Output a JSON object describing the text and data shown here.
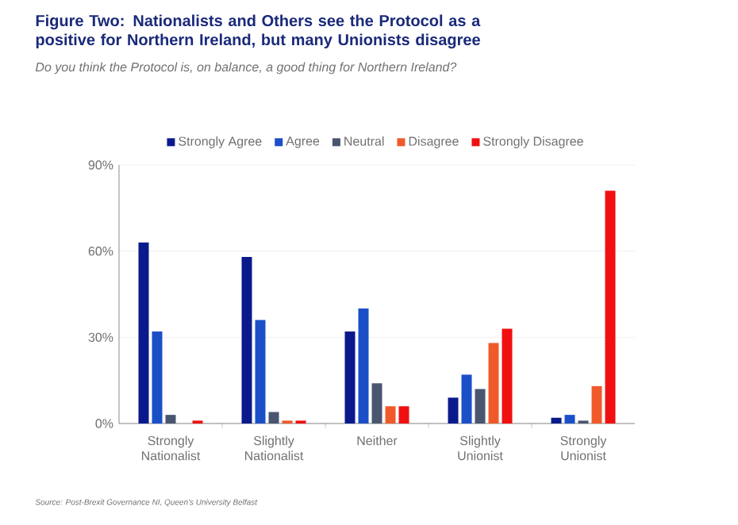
{
  "chart_data": {
    "type": "bar",
    "title": "Figure Two: Nationalists and Others see the Protocol as a positive for Northern Ireland, but many Unionists disagree",
    "subtitle": "Do you think the Protocol is, on balance, a good thing for Northern Ireland?",
    "categories": [
      "Strongly Nationalist",
      "Slightly Nationalist",
      "Neither",
      "Slightly Unionist",
      "Strongly Unionist"
    ],
    "series": [
      {
        "name": "Strongly Agree",
        "color": "#0a1a8c",
        "values": [
          63,
          58,
          32,
          9,
          2
        ]
      },
      {
        "name": "Agree",
        "color": "#1a4fc8",
        "values": [
          32,
          36,
          40,
          17,
          3
        ]
      },
      {
        "name": "Neutral",
        "color": "#4a5670",
        "values": [
          3,
          4,
          14,
          12,
          1
        ]
      },
      {
        "name": "Disagree",
        "color": "#f05a2a",
        "values": [
          0,
          1,
          6,
          28,
          13
        ]
      },
      {
        "name": "Strongly Disagree",
        "color": "#f01010",
        "values": [
          1,
          1,
          6,
          33,
          81
        ]
      }
    ],
    "ylim": [
      0,
      90
    ],
    "yticks": [
      {
        "value": 0,
        "label": "0%"
      },
      {
        "value": 30,
        "label": "30%"
      },
      {
        "value": 60,
        "label": "60%"
      },
      {
        "value": 90,
        "label": "90%"
      }
    ],
    "grid": "y",
    "legend": "top",
    "annotations": [
      "Source: Post-Brexit Governance NI, Queen's University Belfast"
    ]
  }
}
